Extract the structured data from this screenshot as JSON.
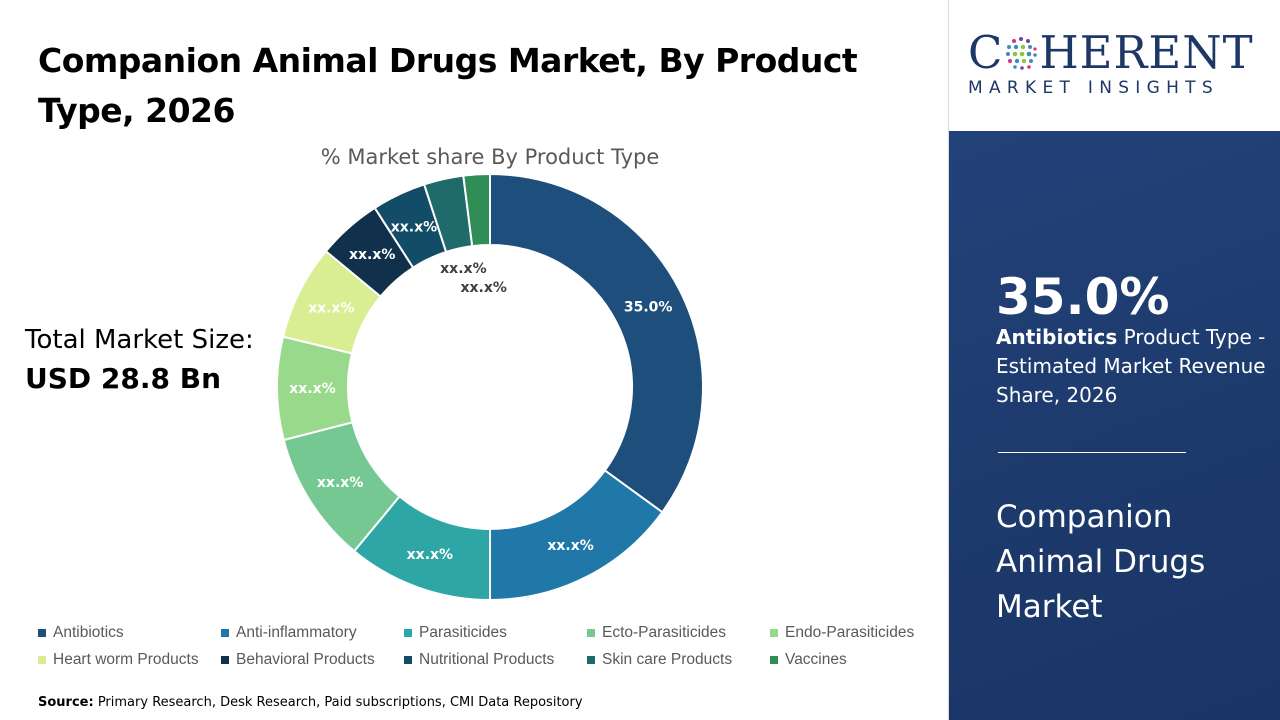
{
  "header": {
    "title": "Companion Animal Drugs Market, By Product Type, 2026"
  },
  "total": {
    "label": "Total Market Size:",
    "value": "USD 28.8 Bn"
  },
  "source": {
    "label": "Source:",
    "text": " Primary Research, Desk Research, Paid subscriptions, CMI Data Repository"
  },
  "logo": {
    "name": "COHERENT",
    "tagline": "MARKET INSIGHTS"
  },
  "panel": {
    "percent": "35.0%",
    "highlight": "Antibiotics",
    "desc": " Product Type - Estimated Market Revenue Share, 2026",
    "market": "Companion Animal Drugs Market",
    "bg_color": "#1f3b6e"
  },
  "chart_data": {
    "type": "pie",
    "subtype": "donut",
    "title": "% Market share By Product Type",
    "categories": [
      "Antibiotics",
      "Anti-inflammatory",
      "Parasiticides",
      "Ecto-Parasiticides",
      "Endo-Parasiticides",
      "Heart worm Products",
      "Behavioral Products",
      "Nutritional Products",
      "Skin care Products",
      "Vaccines"
    ],
    "values": [
      35.0,
      15.0,
      11.0,
      10.0,
      7.8,
      7.2,
      4.9,
      4.1,
      3.0,
      2.0
    ],
    "labels": [
      "35.0%",
      "xx.x%",
      "xx.x%",
      "xx.x%",
      "xx.x%",
      "xx.x%",
      "xx.x%",
      "xx.x%",
      "xx.x%",
      "xx.x%"
    ],
    "colors": [
      "#1e4f7c",
      "#1f78a8",
      "#2fa6a6",
      "#76c893",
      "#99d98c",
      "#d9ed92",
      "#10304b",
      "#134c66",
      "#1f6a6a",
      "#2f8d55"
    ],
    "legend": "bottom"
  }
}
